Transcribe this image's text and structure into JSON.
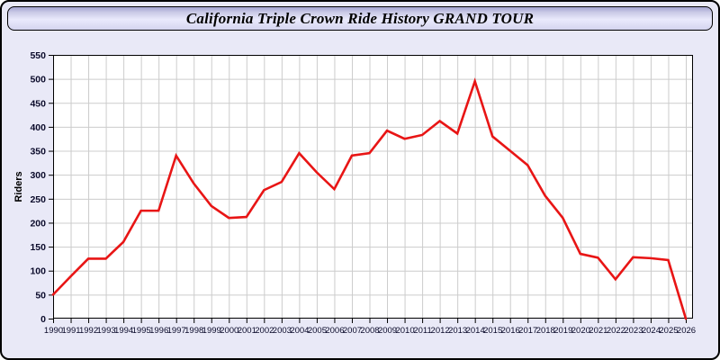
{
  "window": {
    "title": "California Triple Crown Ride History GRAND TOUR"
  },
  "colors": {
    "page_bg": "#e9e9f7",
    "plot_bg": "#ffffff",
    "grid": "#cccccc",
    "axis": "#000000",
    "tick_label": "#0a0a2a",
    "line": "#e81515",
    "header_top": "#a3a3cf",
    "header_mid": "#eaeafc",
    "header_bottom": "#d4d4ef"
  },
  "chart_data": {
    "type": "line",
    "title": "California Triple Crown Ride History GRAND TOUR",
    "xlabel": "",
    "ylabel": "Riders",
    "legend": "none",
    "grid": true,
    "ylim": [
      0,
      550
    ],
    "ytick_step": 50,
    "x": [
      1990,
      1991,
      1992,
      1993,
      1994,
      1995,
      1996,
      1997,
      1998,
      1999,
      2000,
      2001,
      2002,
      2003,
      2004,
      2005,
      2006,
      2007,
      2008,
      2009,
      2010,
      2011,
      2012,
      2013,
      2014,
      2015,
      2016,
      2017,
      2018,
      2019,
      2020,
      2021,
      2022,
      2023,
      2024,
      2025,
      2026
    ],
    "series": [
      {
        "name": "Riders",
        "values": [
          50,
          88,
          125,
          125,
          160,
          225,
          225,
          340,
          282,
          235,
          210,
          212,
          268,
          285,
          345,
          305,
          270,
          340,
          345,
          392,
          375,
          383,
          412,
          386,
          495,
          380,
          350,
          320,
          256,
          210,
          135,
          127,
          82,
          128,
          126,
          122,
          0
        ]
      }
    ]
  }
}
